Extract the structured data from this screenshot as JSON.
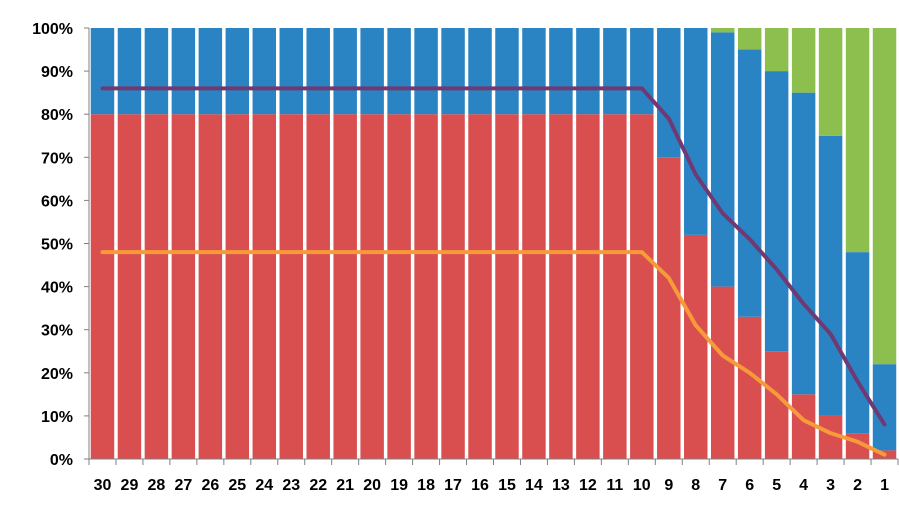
{
  "chart_data": {
    "type": "bar",
    "stacked": true,
    "percent": true,
    "categories": [
      "30",
      "29",
      "28",
      "27",
      "26",
      "25",
      "24",
      "23",
      "22",
      "21",
      "20",
      "19",
      "18",
      "17",
      "16",
      "15",
      "14",
      "13",
      "12",
      "11",
      "10",
      "9",
      "8",
      "7",
      "6",
      "5",
      "4",
      "3",
      "2",
      "1"
    ],
    "series": [
      {
        "color": "#d94f4f",
        "values": [
          80,
          80,
          80,
          80,
          80,
          80,
          80,
          80,
          80,
          80,
          80,
          80,
          80,
          80,
          80,
          80,
          80,
          80,
          80,
          80,
          80,
          70,
          52,
          40,
          33,
          25,
          15,
          10,
          6,
          2
        ]
      },
      {
        "color": "#2a84c3",
        "values": [
          20,
          20,
          20,
          20,
          20,
          20,
          20,
          20,
          20,
          20,
          20,
          20,
          20,
          20,
          20,
          20,
          20,
          20,
          20,
          20,
          20,
          30,
          48,
          59,
          62,
          65,
          70,
          65,
          42,
          20
        ]
      },
      {
        "color": "#8dbf4f",
        "values": [
          0,
          0,
          0,
          0,
          0,
          0,
          0,
          0,
          0,
          0,
          0,
          0,
          0,
          0,
          0,
          0,
          0,
          0,
          0,
          0,
          0,
          0,
          0,
          1,
          5,
          10,
          15,
          25,
          52,
          78
        ]
      }
    ],
    "lines": [
      {
        "color": "#6f3a73",
        "values": [
          86,
          86,
          86,
          86,
          86,
          86,
          86,
          86,
          86,
          86,
          86,
          86,
          86,
          86,
          86,
          86,
          86,
          86,
          86,
          86,
          86,
          79,
          66,
          57,
          51,
          44,
          36,
          29,
          18,
          8
        ]
      },
      {
        "color": "#f79a3a",
        "values": [
          48,
          48,
          48,
          48,
          48,
          48,
          48,
          48,
          48,
          48,
          48,
          48,
          48,
          48,
          48,
          48,
          48,
          48,
          48,
          48,
          48,
          42,
          31,
          24,
          20,
          15,
          9,
          6,
          4,
          1
        ]
      }
    ],
    "yticks": [
      "0%",
      "10%",
      "20%",
      "30%",
      "40%",
      "50%",
      "60%",
      "70%",
      "80%",
      "90%",
      "100%"
    ],
    "ylim": [
      0,
      100
    ],
    "grid": false,
    "title": "",
    "xlabel": "",
    "ylabel": ""
  }
}
